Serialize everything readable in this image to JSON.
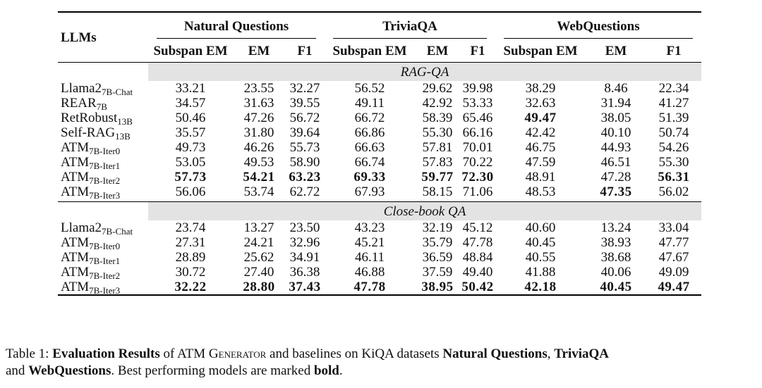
{
  "table": {
    "llm_header": "LLMs",
    "groups": [
      "Natural Questions",
      "TriviaQA",
      "WebQuestions"
    ],
    "subheaders": [
      "Subspan EM",
      "EM",
      "F1",
      "Subspan EM",
      "EM",
      "F1",
      "Subspan EM",
      "EM",
      "F1"
    ],
    "sections": [
      {
        "title": "RAG-QA",
        "rows": [
          {
            "model": "Llama2",
            "sub": "7B-Chat",
            "values": [
              "33.21",
              "23.55",
              "32.27",
              "56.52",
              "29.62",
              "39.98",
              "38.29",
              "8.46",
              "22.34"
            ],
            "bold": []
          },
          {
            "model": "REAR",
            "sub": "7B",
            "values": [
              "34.57",
              "31.63",
              "39.55",
              "49.11",
              "42.92",
              "53.33",
              "32.63",
              "31.94",
              "41.27"
            ],
            "bold": []
          },
          {
            "model": "RetRobust",
            "sub": "13B",
            "values": [
              "50.46",
              "47.26",
              "56.72",
              "66.72",
              "58.39",
              "65.46",
              "49.47",
              "38.05",
              "51.39"
            ],
            "bold": [
              6
            ]
          },
          {
            "model": "Self-RAG",
            "sub": "13B",
            "values": [
              "35.57",
              "31.80",
              "39.64",
              "66.86",
              "55.30",
              "66.16",
              "42.42",
              "40.10",
              "50.74"
            ],
            "bold": []
          },
          {
            "model": "ATM",
            "sub": "7B-Iter0",
            "values": [
              "49.73",
              "46.26",
              "55.73",
              "66.63",
              "57.81",
              "70.01",
              "46.75",
              "44.93",
              "54.26"
            ],
            "bold": []
          },
          {
            "model": "ATM",
            "sub": "7B-Iter1",
            "values": [
              "53.05",
              "49.53",
              "58.90",
              "66.74",
              "57.83",
              "70.22",
              "47.59",
              "46.51",
              "55.30"
            ],
            "bold": []
          },
          {
            "model": "ATM",
            "sub": "7B-Iter2",
            "values": [
              "57.73",
              "54.21",
              "63.23",
              "69.33",
              "59.77",
              "72.30",
              "48.91",
              "47.28",
              "56.31"
            ],
            "bold": [
              0,
              1,
              2,
              3,
              4,
              5,
              8
            ]
          },
          {
            "model": "ATM",
            "sub": "7B-Iter3",
            "values": [
              "56.06",
              "53.74",
              "62.72",
              "67.93",
              "58.15",
              "71.06",
              "48.53",
              "47.35",
              "56.02"
            ],
            "bold": [
              7
            ]
          }
        ]
      },
      {
        "title": "Close-book QA",
        "rows": [
          {
            "model": "Llama2",
            "sub": "7B-Chat",
            "values": [
              "23.74",
              "13.27",
              "23.50",
              "43.23",
              "32.19",
              "45.12",
              "40.60",
              "13.24",
              "33.04"
            ],
            "bold": []
          },
          {
            "model": "ATM",
            "sub": "7B-Iter0",
            "values": [
              "27.31",
              "24.21",
              "32.96",
              "45.21",
              "35.79",
              "47.78",
              "40.45",
              "38.93",
              "47.77"
            ],
            "bold": []
          },
          {
            "model": "ATM",
            "sub": "7B-Iter1",
            "values": [
              "28.89",
              "25.62",
              "34.91",
              "46.11",
              "36.59",
              "48.84",
              "40.55",
              "38.68",
              "47.67"
            ],
            "bold": []
          },
          {
            "model": "ATM",
            "sub": "7B-Iter2",
            "values": [
              "30.72",
              "27.40",
              "36.38",
              "46.88",
              "37.59",
              "49.40",
              "41.88",
              "40.06",
              "49.09"
            ],
            "bold": []
          },
          {
            "model": "ATM",
            "sub": "7B-Iter3",
            "values": [
              "32.22",
              "28.80",
              "37.43",
              "47.78",
              "38.95",
              "50.42",
              "42.18",
              "40.45",
              "49.47"
            ],
            "bold": [
              0,
              1,
              2,
              3,
              4,
              5,
              6,
              7,
              8
            ]
          }
        ]
      }
    ]
  },
  "caption": {
    "label": "Table 1: ",
    "bold_title": "Evaluation Results",
    "text_1": " of ATM ",
    "generator_name": "Generator",
    "text_2": " and baselines on KiQA datasets ",
    "ds1": "Natural Questions",
    "sep1": ", ",
    "ds2": "TriviaQA",
    "text_3": " and ",
    "ds3": "WebQuestions",
    "text_4": ". Best performing models are marked ",
    "bold_word": "bold",
    "end": "."
  }
}
